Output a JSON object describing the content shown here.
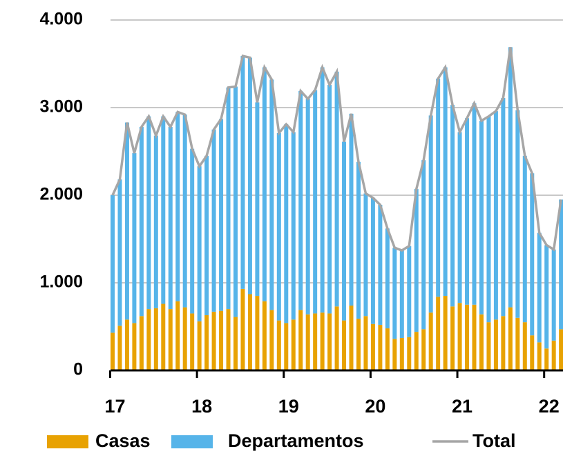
{
  "chart_data": {
    "type": "bar",
    "stacked": true,
    "categories": [
      "17",
      null,
      null,
      null,
      null,
      null,
      null,
      null,
      null,
      null,
      null,
      null,
      "18",
      null,
      null,
      null,
      null,
      null,
      null,
      null,
      null,
      null,
      null,
      null,
      "19",
      null,
      null,
      null,
      null,
      null,
      null,
      null,
      null,
      null,
      null,
      null,
      "20",
      null,
      null,
      null,
      null,
      null,
      null,
      null,
      null,
      null,
      null,
      null,
      "21",
      null,
      null,
      null,
      null,
      null,
      null,
      null,
      null,
      null,
      null,
      null,
      "22",
      null,
      null
    ],
    "series": [
      {
        "name": "Casas",
        "type": "bar",
        "color": "#e8a202",
        "values": [
          430,
          510,
          580,
          540,
          620,
          700,
          710,
          760,
          700,
          790,
          720,
          650,
          560,
          630,
          670,
          680,
          700,
          610,
          930,
          870,
          850,
          790,
          690,
          570,
          540,
          580,
          690,
          640,
          650,
          660,
          650,
          730,
          570,
          740,
          590,
          620,
          530,
          520,
          480,
          360,
          370,
          380,
          440,
          470,
          660,
          840,
          850,
          730,
          770,
          750,
          750,
          640,
          550,
          580,
          620,
          720,
          600,
          550,
          400,
          320,
          250,
          340,
          470
        ]
      },
      {
        "name": "Departamentos",
        "type": "bar",
        "color": "#56b4e9",
        "values": [
          1570,
          1670,
          2250,
          1940,
          2160,
          2200,
          1970,
          2140,
          2080,
          2160,
          2200,
          1880,
          1770,
          1820,
          2080,
          2190,
          2530,
          2630,
          2660,
          2700,
          2210,
          2670,
          2630,
          2140,
          2270,
          2140,
          2500,
          2460,
          2550,
          2800,
          2610,
          2680,
          2040,
          2190,
          1790,
          1400,
          1440,
          1370,
          1140,
          1040,
          1000,
          1040,
          1630,
          1930,
          2250,
          2490,
          2610,
          2300,
          1950,
          2130,
          2300,
          2210,
          2350,
          2380,
          2490,
          2970,
          2370,
          1900,
          1850,
          1250,
          1180,
          1040,
          1480
        ]
      },
      {
        "name": "Total",
        "type": "line",
        "color": "#a6a6a6",
        "values": [
          2000,
          2180,
          2830,
          2480,
          2780,
          2900,
          2680,
          2900,
          2780,
          2950,
          2920,
          2530,
          2330,
          2450,
          2750,
          2870,
          3230,
          3240,
          3590,
          3570,
          3060,
          3460,
          3320,
          2710,
          2810,
          2720,
          3190,
          3100,
          3200,
          3460,
          3260,
          3410,
          2610,
          2930,
          2380,
          2020,
          1970,
          1890,
          1620,
          1400,
          1370,
          1420,
          2070,
          2400,
          2910,
          3330,
          3460,
          3030,
          2720,
          2880,
          3050,
          2850,
          2900,
          2960,
          3110,
          3690,
          2970,
          2450,
          2250,
          1570,
          1430,
          1380,
          1950
        ]
      }
    ],
    "ylim": [
      0,
      4000
    ],
    "yticks": [
      0,
      {
        "value": 1000,
        "label": "1.000"
      },
      {
        "value": 2000,
        "label": "2.000"
      },
      {
        "value": 3000,
        "label": "3.000"
      },
      {
        "value": 4000,
        "label": "4.000"
      }
    ],
    "grid": true,
    "legend": "bottom"
  }
}
